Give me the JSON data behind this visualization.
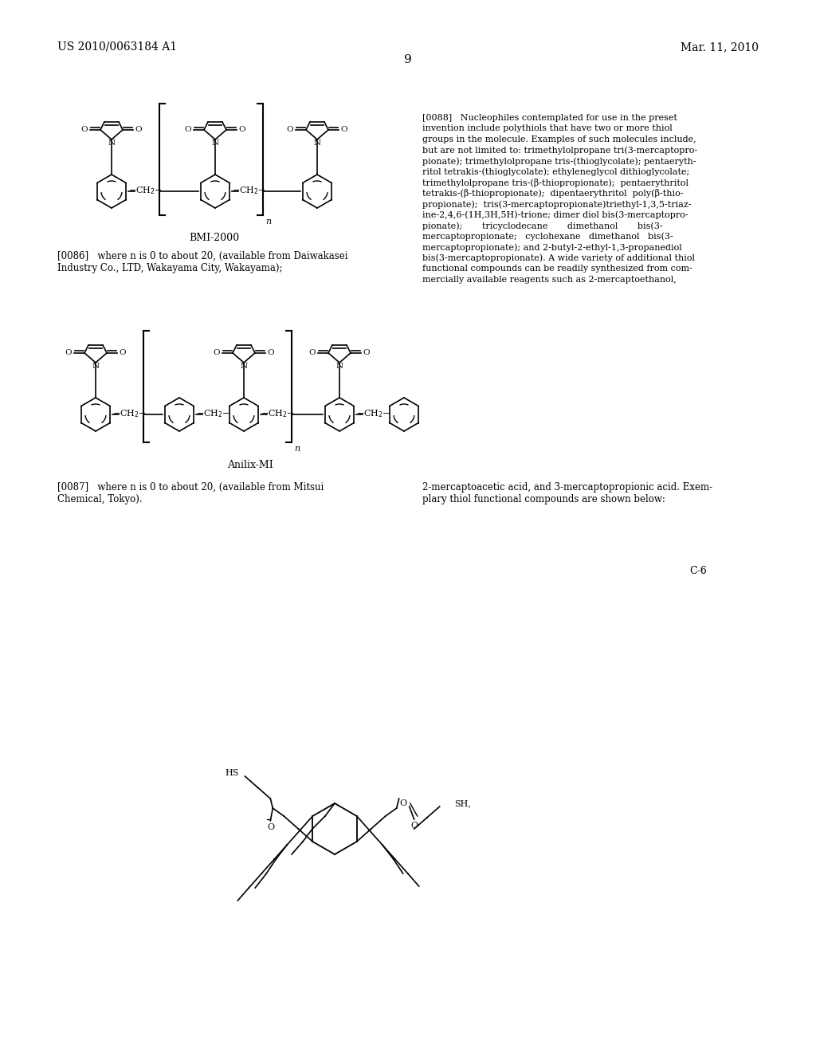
{
  "background_color": "#ffffff",
  "header_left": "US 2010/0063184 A1",
  "header_right": "Mar. 11, 2010",
  "page_number": "9",
  "label_bmi2000": "BMI-2000",
  "label_anilix": "Anilix-MI",
  "label_c6": "C-6",
  "para_086": "[0086]   where n is 0 to about 20, (available from Daiwakasei\nIndustry Co., LTD, Wakayama City, Wakayama);",
  "para_087": "[0087]   where n is 0 to about 20, (available from Mitsui\nChemical, Tokyo).",
  "para_087b": "2-mercaptoacetic acid, and 3-mercaptopropionic acid. Exem-\nplary thiol functional compounds are shown below:",
  "para_088_lines": [
    "[0088]   Nucleophiles contemplated for use in the preset",
    "invention include polythiols that have two or more thiol",
    "groups in the molecule. Examples of such molecules include,",
    "but are not limited to: trimethylolpropane tri(3-mercaptopro-",
    "pionate); trimethylolpropane tris-(thioglycolate); pentaeryth-",
    "ritol tetrakis-(thioglycolate); ethyleneglycol dithioglycolate;",
    "trimethylolpropane tris-(β-thiopropionate);  pentaerythritol",
    "tetrakis-(β-thiopropionate);  dipentaerythritol  poly(β-thio-",
    "propionate);  tris(3-mercaptopropionate)triethyl-1,3,5-triaz-",
    "ine-2,4,6-(1H,3H,5H)-trione; dimer diol bis(3-mercaptopro-",
    "pionate);       tricyclodecane       dimethanol       bis(3-",
    "mercaptopropionate;   cyclohexane   dimethanol   bis(3-",
    "mercaptopropionate); and 2-butyl-2-ethyl-1,3-propanediol",
    "bis(3-mercaptopropionate). A wide variety of additional thiol",
    "functional compounds can be readily synthesized from com-",
    "mercially available reagents such as 2-mercaptoethanol,"
  ]
}
